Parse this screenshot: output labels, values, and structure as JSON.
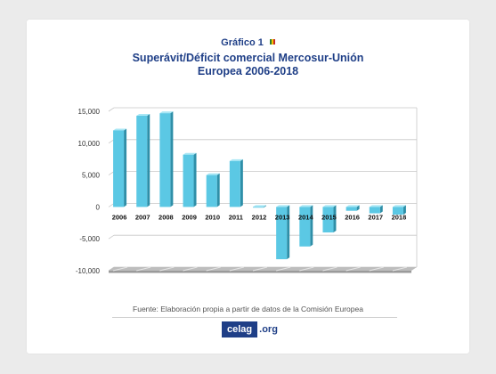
{
  "header": {
    "figure_label": "Gráfico 1",
    "title_line1": "Superávit/Déficit comercial Mercosur-Unión",
    "title_line2": "Europea 2006-2018"
  },
  "footer": {
    "source": "Fuente: Elaboración propia a partir de datos de la Comisión Europea",
    "logo_main": "celag",
    "logo_domain": ".org"
  },
  "colors": {
    "bar_front": "#5bc8e4",
    "bar_side": "#2f8fa8",
    "bar_top": "#a9e7f5",
    "title": "#1f3f87",
    "floor": "#9a9a9a"
  },
  "chart_data": {
    "type": "bar",
    "title": "Superávit/Déficit comercial Mercosur-Unión Europea 2006-2018",
    "xlabel": "",
    "ylabel": "",
    "categories": [
      "2006",
      "2007",
      "2008",
      "2009",
      "2010",
      "2011",
      "2012",
      "2013",
      "2014",
      "2015",
      "2016",
      "2017",
      "2018"
    ],
    "values": [
      12000,
      14300,
      14700,
      8200,
      5000,
      7200,
      -100,
      -8200,
      -6200,
      -4000,
      -600,
      -1000,
      -1200
    ],
    "ylim": [
      -10000,
      15000
    ],
    "yticks": [
      15000,
      10000,
      5000,
      0,
      -5000,
      -10000
    ],
    "ytick_labels": [
      "15,000",
      "10,000",
      "5,000",
      "0",
      "-5,000",
      "-10,000"
    ],
    "grid": true,
    "legend": "none"
  }
}
